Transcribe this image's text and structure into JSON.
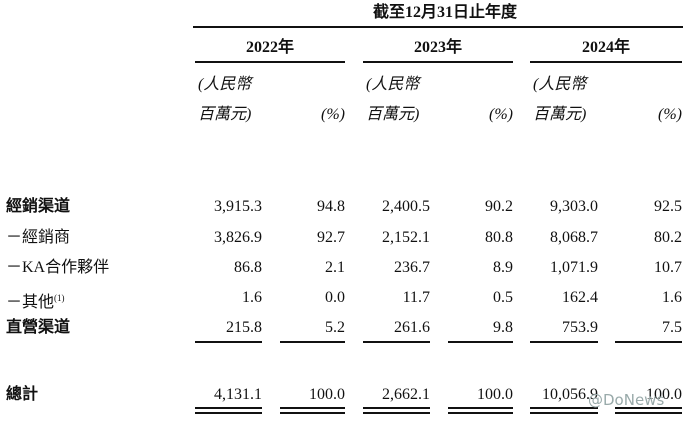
{
  "header": {
    "title": "截至12月31日止年度"
  },
  "years": [
    "2022年",
    "2023年",
    "2024年"
  ],
  "units": {
    "amount_line1": "(人民幣",
    "amount_line2": "百萬元)",
    "percent": "(%)"
  },
  "rows": [
    {
      "label": "經銷渠道",
      "bold": true,
      "values": [
        "3,915.3",
        "94.8",
        "2,400.5",
        "90.2",
        "9,303.0",
        "92.5"
      ]
    },
    {
      "label": "－經銷商",
      "bold": false,
      "values": [
        "3,826.9",
        "92.7",
        "2,152.1",
        "80.8",
        "8,068.7",
        "80.2"
      ]
    },
    {
      "label": "－KA合作夥伴",
      "bold": false,
      "values": [
        "86.8",
        "2.1",
        "236.7",
        "8.9",
        "1,071.9",
        "10.7"
      ]
    },
    {
      "label": "－其他",
      "note": "(1)",
      "bold": false,
      "values": [
        "1.6",
        "0.0",
        "11.7",
        "0.5",
        "162.4",
        "1.6"
      ]
    },
    {
      "label": "直營渠道",
      "bold": true,
      "values": [
        "215.8",
        "5.2",
        "261.6",
        "9.8",
        "753.9",
        "7.5"
      ]
    }
  ],
  "total": {
    "label": "總計",
    "values": [
      "4,131.1",
      "100.0",
      "2,662.1",
      "100.0",
      "10,056.9",
      "100.0"
    ]
  },
  "watermark": "@DoNews"
}
